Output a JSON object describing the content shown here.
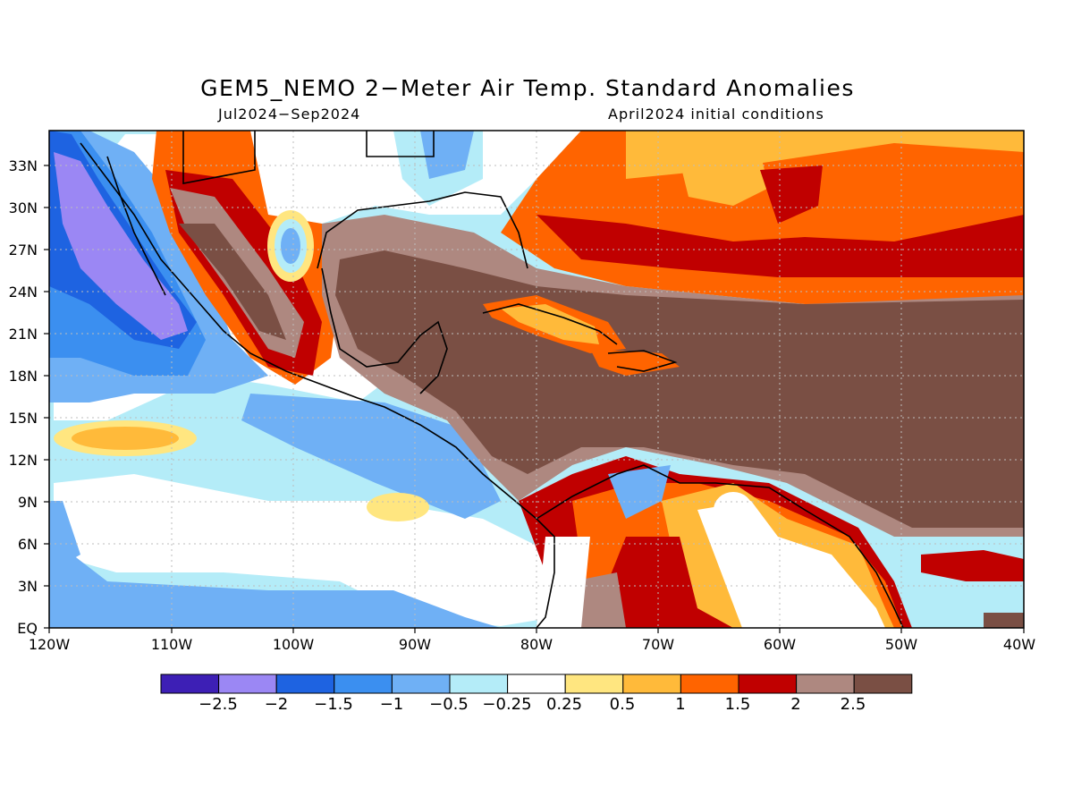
{
  "title": "GEM5_NEMO 2−Meter Air Temp. Standard Anomalies",
  "period": "Jul2024−Sep2024",
  "init": "April2024 initial conditions",
  "lat_labels": [
    "EQ",
    "3N",
    "6N",
    "9N",
    "12N",
    "15N",
    "18N",
    "21N",
    "24N",
    "27N",
    "30N",
    "33N"
  ],
  "lon_labels": [
    "120W",
    "110W",
    "100W",
    "90W",
    "80W",
    "70W",
    "60W",
    "50W",
    "40W"
  ],
  "legend": {
    "colors": [
      "#3d1fb5",
      "#9b87f4",
      "#1e63e1",
      "#3b8ff0",
      "#6fb0f5",
      "#b4ecf8",
      "#ffffff",
      "#ffe680",
      "#ffba3a",
      "#ff6400",
      "#c00000",
      "#ae8880",
      "#7a4f44"
    ],
    "labels": [
      "−2.5",
      "−2",
      "−1.5",
      "−1",
      "−0.5",
      "−0.25",
      "0.25",
      "0.5",
      "1",
      "1.5",
      "2",
      "2.5"
    ]
  }
}
